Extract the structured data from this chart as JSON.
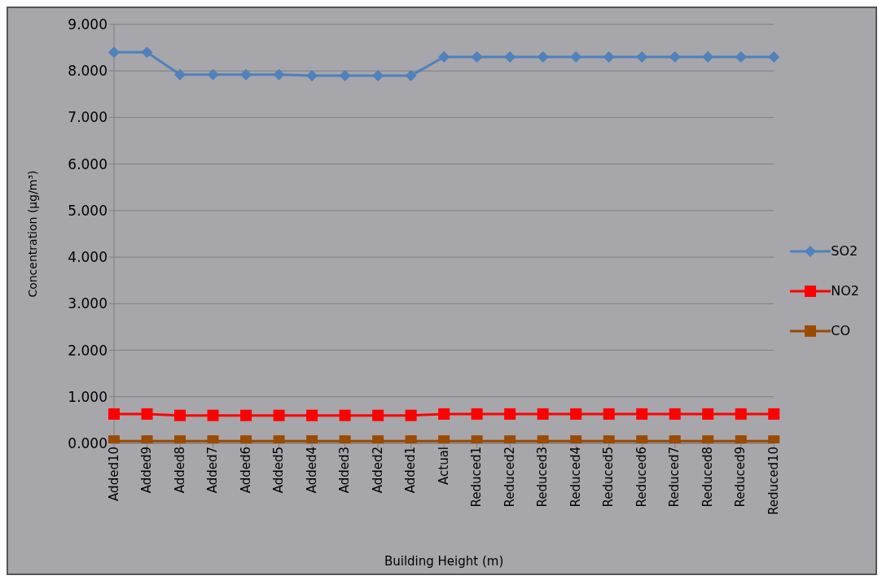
{
  "chart_data": {
    "type": "line",
    "xlabel": "Building Height (m)",
    "ylabel": "Concentration (µg/m³)",
    "categories": [
      "Added10",
      "Added9",
      "Added8",
      "Added7",
      "Added6",
      "Added5",
      "Added4",
      "Added3",
      "Added2",
      "Added1",
      "Actual",
      "Reduced1",
      "Reduced2",
      "Reduced3",
      "Reduced4",
      "Reduced5",
      "Reduced6",
      "Reduced7",
      "Reduced8",
      "Reduced9",
      "Reduced10"
    ],
    "series": [
      {
        "name": "SO2",
        "color": "#4f81bd",
        "marker": "diamond",
        "values": [
          8.4,
          8.4,
          7.92,
          7.92,
          7.92,
          7.92,
          7.9,
          7.9,
          7.9,
          7.9,
          8.3,
          8.3,
          8.3,
          8.3,
          8.3,
          8.3,
          8.3,
          8.3,
          8.3,
          8.3,
          8.3
        ]
      },
      {
        "name": "NO2",
        "color": "#ff0000",
        "marker": "square",
        "values": [
          0.63,
          0.63,
          0.6,
          0.6,
          0.6,
          0.6,
          0.6,
          0.6,
          0.6,
          0.6,
          0.63,
          0.63,
          0.63,
          0.63,
          0.63,
          0.63,
          0.63,
          0.63,
          0.63,
          0.63,
          0.63
        ]
      },
      {
        "name": "CO",
        "color": "#9c4a00",
        "marker": "square",
        "values": [
          0.05,
          0.05,
          0.05,
          0.05,
          0.05,
          0.05,
          0.05,
          0.05,
          0.05,
          0.05,
          0.05,
          0.05,
          0.05,
          0.05,
          0.05,
          0.05,
          0.05,
          0.05,
          0.05,
          0.05,
          0.05
        ]
      }
    ],
    "ylim": [
      0,
      9
    ],
    "yticks": [
      {
        "value": 0,
        "label": "0.000"
      },
      {
        "value": 1,
        "label": "1.000"
      },
      {
        "value": 2,
        "label": "2.000"
      },
      {
        "value": 3,
        "label": "3.000"
      },
      {
        "value": 4,
        "label": "4.000"
      },
      {
        "value": 5,
        "label": "5.000"
      },
      {
        "value": 6,
        "label": "6.000"
      },
      {
        "value": 7,
        "label": "7.000"
      },
      {
        "value": 8,
        "label": "8.000"
      },
      {
        "value": 9,
        "label": "9.000"
      }
    ],
    "grid": "y",
    "legend": "right"
  }
}
